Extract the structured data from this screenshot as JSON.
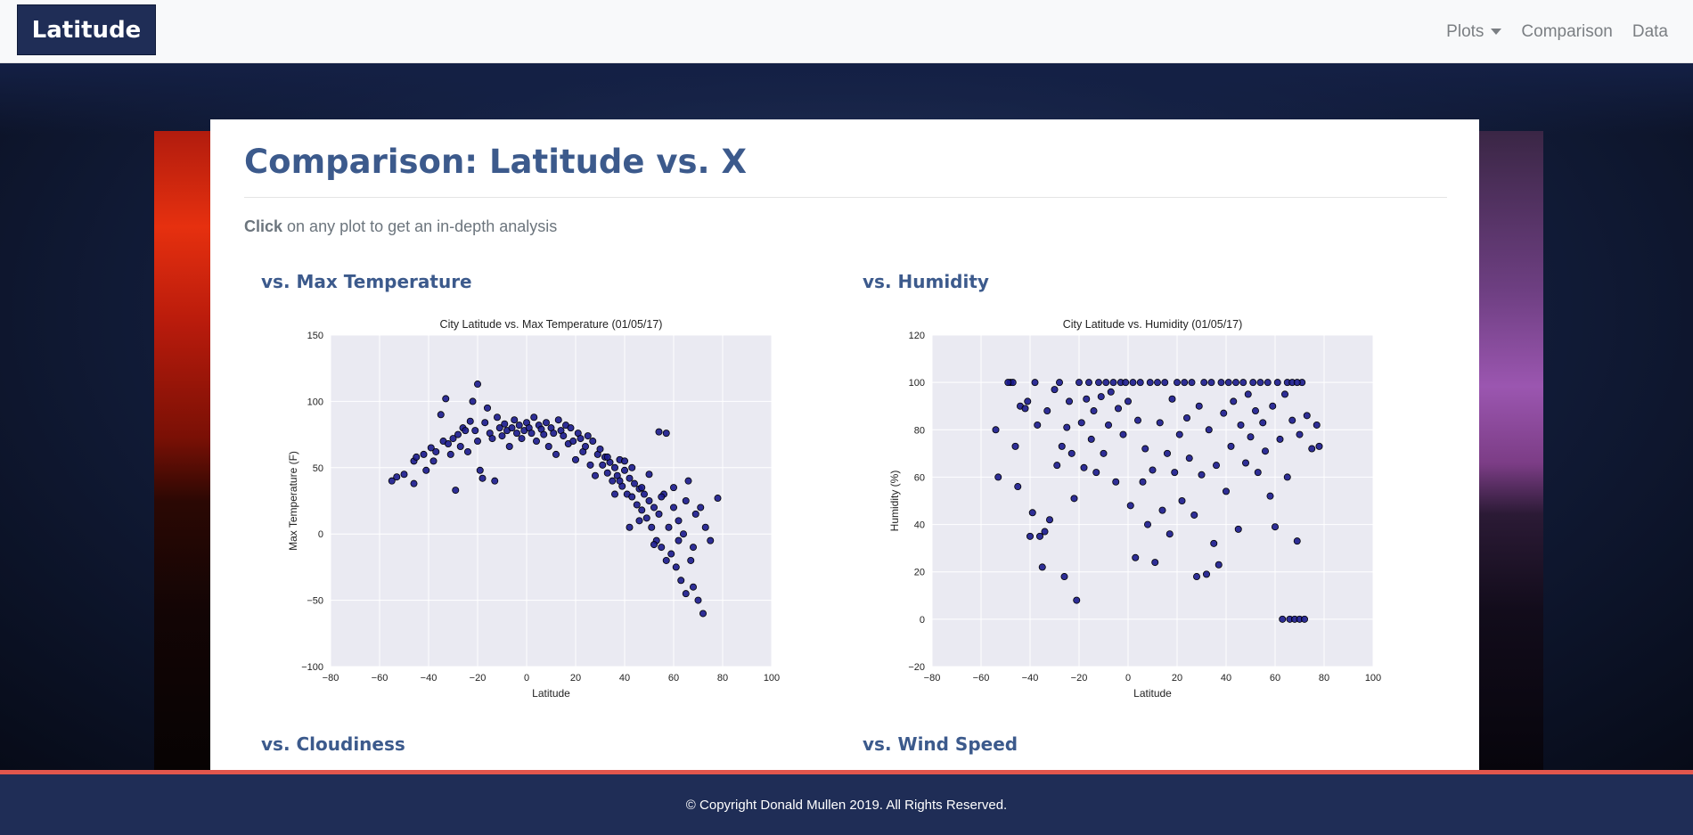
{
  "navbar": {
    "brand": "Latitude",
    "items": [
      {
        "label": "Plots",
        "dropdown": true
      },
      {
        "label": "Comparison"
      },
      {
        "label": "Data"
      }
    ]
  },
  "page": {
    "title": "Comparison: Latitude vs. X",
    "intro_bold": "Click",
    "intro_rest": " on any plot to get an in-depth analysis"
  },
  "sections": {
    "max_temp": "vs. Max Temperature",
    "humidity": "vs. Humidity",
    "cloudiness": "vs. Cloudiness",
    "wind": "vs. Wind Speed"
  },
  "footer": {
    "text": "© Copyright Donald Mullen 2019. All Rights Reserved."
  },
  "colors": {
    "accent": "#3c5a8c",
    "nav_dark": "#1f2d56",
    "footer_line": "#e1564d",
    "marker": "#1a1a8c",
    "plot_bg": "#eaeaf2"
  },
  "chart_data": [
    {
      "type": "scatter",
      "title": "City Latitude vs. Max Temperature (01/05/17)",
      "xlabel": "Latitude",
      "ylabel": "Max Temperature (F)",
      "xlim": [
        -80,
        100
      ],
      "ylim": [
        -100,
        150
      ],
      "xticks": [
        -80,
        -60,
        -40,
        -20,
        0,
        20,
        40,
        60,
        80,
        100
      ],
      "yticks": [
        -100,
        -50,
        0,
        50,
        100,
        150
      ],
      "grid": true,
      "points": [
        [
          -55,
          40
        ],
        [
          -53,
          43
        ],
        [
          -50,
          45
        ],
        [
          -46,
          38
        ],
        [
          -46,
          55
        ],
        [
          -45,
          58
        ],
        [
          -42,
          60
        ],
        [
          -41,
          48
        ],
        [
          -39,
          65
        ],
        [
          -38,
          55
        ],
        [
          -37,
          62
        ],
        [
          -35,
          90
        ],
        [
          -34,
          70
        ],
        [
          -33,
          102
        ],
        [
          -32,
          68
        ],
        [
          -31,
          60
        ],
        [
          -30,
          72
        ],
        [
          -29,
          33
        ],
        [
          -28,
          75
        ],
        [
          -27,
          66
        ],
        [
          -26,
          80
        ],
        [
          -25,
          78
        ],
        [
          -24,
          62
        ],
        [
          -23,
          85
        ],
        [
          -22,
          100
        ],
        [
          -21,
          78
        ],
        [
          -20,
          113
        ],
        [
          -20,
          70
        ],
        [
          -19,
          48
        ],
        [
          -18,
          42
        ],
        [
          -17,
          84
        ],
        [
          -16,
          95
        ],
        [
          -15,
          76
        ],
        [
          -14,
          72
        ],
        [
          -13,
          40
        ],
        [
          -12,
          88
        ],
        [
          -11,
          80
        ],
        [
          -10,
          74
        ],
        [
          -9,
          83
        ],
        [
          -8,
          78
        ],
        [
          -7,
          66
        ],
        [
          -6,
          80
        ],
        [
          -5,
          86
        ],
        [
          -4,
          76
        ],
        [
          -3,
          82
        ],
        [
          -2,
          72
        ],
        [
          -1,
          78
        ],
        [
          0,
          84
        ],
        [
          1,
          80
        ],
        [
          2,
          76
        ],
        [
          3,
          88
        ],
        [
          4,
          70
        ],
        [
          5,
          82
        ],
        [
          6,
          79
        ],
        [
          7,
          75
        ],
        [
          8,
          84
        ],
        [
          9,
          66
        ],
        [
          10,
          80
        ],
        [
          11,
          76
        ],
        [
          12,
          60
        ],
        [
          13,
          86
        ],
        [
          14,
          78
        ],
        [
          15,
          74
        ],
        [
          16,
          82
        ],
        [
          17,
          68
        ],
        [
          18,
          80
        ],
        [
          19,
          70
        ],
        [
          20,
          56
        ],
        [
          21,
          76
        ],
        [
          22,
          72
        ],
        [
          23,
          62
        ],
        [
          24,
          66
        ],
        [
          25,
          74
        ],
        [
          26,
          52
        ],
        [
          27,
          70
        ],
        [
          28,
          44
        ],
        [
          29,
          60
        ],
        [
          30,
          64
        ],
        [
          31,
          52
        ],
        [
          32,
          58
        ],
        [
          33,
          46
        ],
        [
          34,
          54
        ],
        [
          35,
          40
        ],
        [
          36,
          50
        ],
        [
          37,
          44
        ],
        [
          38,
          56
        ],
        [
          39,
          36
        ],
        [
          40,
          48
        ],
        [
          41,
          30
        ],
        [
          42,
          42
        ],
        [
          43,
          28
        ],
        [
          44,
          38
        ],
        [
          45,
          22
        ],
        [
          46,
          34
        ],
        [
          47,
          18
        ],
        [
          48,
          30
        ],
        [
          49,
          12
        ],
        [
          50,
          25
        ],
        [
          51,
          5
        ],
        [
          52,
          20
        ],
        [
          53,
          -5
        ],
        [
          54,
          15
        ],
        [
          55,
          -10
        ],
        [
          56,
          30
        ],
        [
          57,
          76
        ],
        [
          58,
          5
        ],
        [
          59,
          -15
        ],
        [
          60,
          20
        ],
        [
          61,
          -25
        ],
        [
          62,
          10
        ],
        [
          63,
          -35
        ],
        [
          64,
          0
        ],
        [
          65,
          -45
        ],
        [
          66,
          40
        ],
        [
          67,
          -20
        ],
        [
          68,
          -40
        ],
        [
          69,
          15
        ],
        [
          70,
          -50
        ],
        [
          71,
          20
        ],
        [
          72,
          -60
        ],
        [
          73,
          5
        ],
        [
          75,
          -5
        ],
        [
          78,
          27
        ],
        [
          33,
          58
        ],
        [
          40,
          55
        ],
        [
          43,
          50
        ],
        [
          47,
          35
        ],
        [
          50,
          45
        ],
        [
          55,
          28
        ],
        [
          60,
          35
        ],
        [
          36,
          30
        ],
        [
          38,
          40
        ],
        [
          42,
          5
        ],
        [
          46,
          10
        ],
        [
          52,
          -8
        ],
        [
          54,
          77
        ],
        [
          57,
          -20
        ],
        [
          62,
          -5
        ],
        [
          65,
          25
        ],
        [
          68,
          -10
        ]
      ]
    },
    {
      "type": "scatter",
      "title": "City Latitude vs. Humidity (01/05/17)",
      "xlabel": "Latitude",
      "ylabel": "Humidity (%)",
      "xlim": [
        -80,
        100
      ],
      "ylim": [
        -20,
        120
      ],
      "xticks": [
        -80,
        -60,
        -40,
        -20,
        0,
        20,
        40,
        60,
        80,
        100
      ],
      "yticks": [
        -20,
        0,
        20,
        40,
        60,
        80,
        100,
        120
      ],
      "grid": true,
      "points": [
        [
          -54,
          80
        ],
        [
          -53,
          60
        ],
        [
          -48,
          100
        ],
        [
          -47,
          100
        ],
        [
          -46,
          73
        ],
        [
          -45,
          56
        ],
        [
          -44,
          90
        ],
        [
          -42,
          89
        ],
        [
          -40,
          35
        ],
        [
          -39,
          45
        ],
        [
          -38,
          100
        ],
        [
          -37,
          82
        ],
        [
          -36,
          35
        ],
        [
          -35,
          22
        ],
        [
          -34,
          37
        ],
        [
          -33,
          88
        ],
        [
          -32,
          42
        ],
        [
          -30,
          97
        ],
        [
          -29,
          65
        ],
        [
          -28,
          100
        ],
        [
          -27,
          73
        ],
        [
          -26,
          18
        ],
        [
          -25,
          81
        ],
        [
          -24,
          92
        ],
        [
          -23,
          70
        ],
        [
          -22,
          51
        ],
        [
          -21,
          8
        ],
        [
          -20,
          100
        ],
        [
          -19,
          83
        ],
        [
          -18,
          64
        ],
        [
          -17,
          93
        ],
        [
          -16,
          100
        ],
        [
          -15,
          76
        ],
        [
          -14,
          88
        ],
        [
          -13,
          62
        ],
        [
          -12,
          100
        ],
        [
          -11,
          94
        ],
        [
          -10,
          70
        ],
        [
          -9,
          100
        ],
        [
          -8,
          82
        ],
        [
          -7,
          96
        ],
        [
          -6,
          100
        ],
        [
          -5,
          58
        ],
        [
          -4,
          89
        ],
        [
          -3,
          100
        ],
        [
          -2,
          78
        ],
        [
          -1,
          100
        ],
        [
          0,
          92
        ],
        [
          1,
          48
        ],
        [
          2,
          100
        ],
        [
          3,
          26
        ],
        [
          4,
          84
        ],
        [
          5,
          100
        ],
        [
          6,
          58
        ],
        [
          7,
          72
        ],
        [
          8,
          40
        ],
        [
          9,
          100
        ],
        [
          10,
          63
        ],
        [
          11,
          24
        ],
        [
          12,
          100
        ],
        [
          13,
          83
        ],
        [
          14,
          46
        ],
        [
          15,
          100
        ],
        [
          16,
          70
        ],
        [
          17,
          36
        ],
        [
          18,
          93
        ],
        [
          19,
          62
        ],
        [
          20,
          100
        ],
        [
          21,
          78
        ],
        [
          22,
          50
        ],
        [
          23,
          100
        ],
        [
          24,
          85
        ],
        [
          25,
          68
        ],
        [
          26,
          100
        ],
        [
          27,
          44
        ],
        [
          28,
          18
        ],
        [
          29,
          90
        ],
        [
          30,
          61
        ],
        [
          31,
          100
        ],
        [
          32,
          19
        ],
        [
          33,
          80
        ],
        [
          34,
          100
        ],
        [
          35,
          32
        ],
        [
          36,
          65
        ],
        [
          37,
          23
        ],
        [
          38,
          100
        ],
        [
          39,
          87
        ],
        [
          40,
          54
        ],
        [
          41,
          100
        ],
        [
          42,
          73
        ],
        [
          43,
          92
        ],
        [
          44,
          100
        ],
        [
          45,
          38
        ],
        [
          46,
          82
        ],
        [
          47,
          100
        ],
        [
          48,
          66
        ],
        [
          49,
          95
        ],
        [
          50,
          77
        ],
        [
          51,
          100
        ],
        [
          52,
          88
        ],
        [
          53,
          62
        ],
        [
          54,
          100
        ],
        [
          55,
          83
        ],
        [
          56,
          71
        ],
        [
          57,
          100
        ],
        [
          58,
          52
        ],
        [
          59,
          90
        ],
        [
          60,
          39
        ],
        [
          61,
          100
        ],
        [
          62,
          76
        ],
        [
          63,
          0
        ],
        [
          64,
          95
        ],
        [
          65,
          60
        ],
        [
          66,
          0
        ],
        [
          67,
          84
        ],
        [
          68,
          0
        ],
        [
          69,
          33
        ],
        [
          70,
          0
        ],
        [
          71,
          100
        ],
        [
          72,
          0
        ],
        [
          73,
          86
        ],
        [
          75,
          72
        ],
        [
          77,
          82
        ],
        [
          78,
          73
        ],
        [
          65,
          100
        ],
        [
          67,
          100
        ],
        [
          69,
          100
        ],
        [
          70,
          78
        ],
        [
          -49,
          100
        ],
        [
          -41,
          92
        ]
      ]
    }
  ]
}
